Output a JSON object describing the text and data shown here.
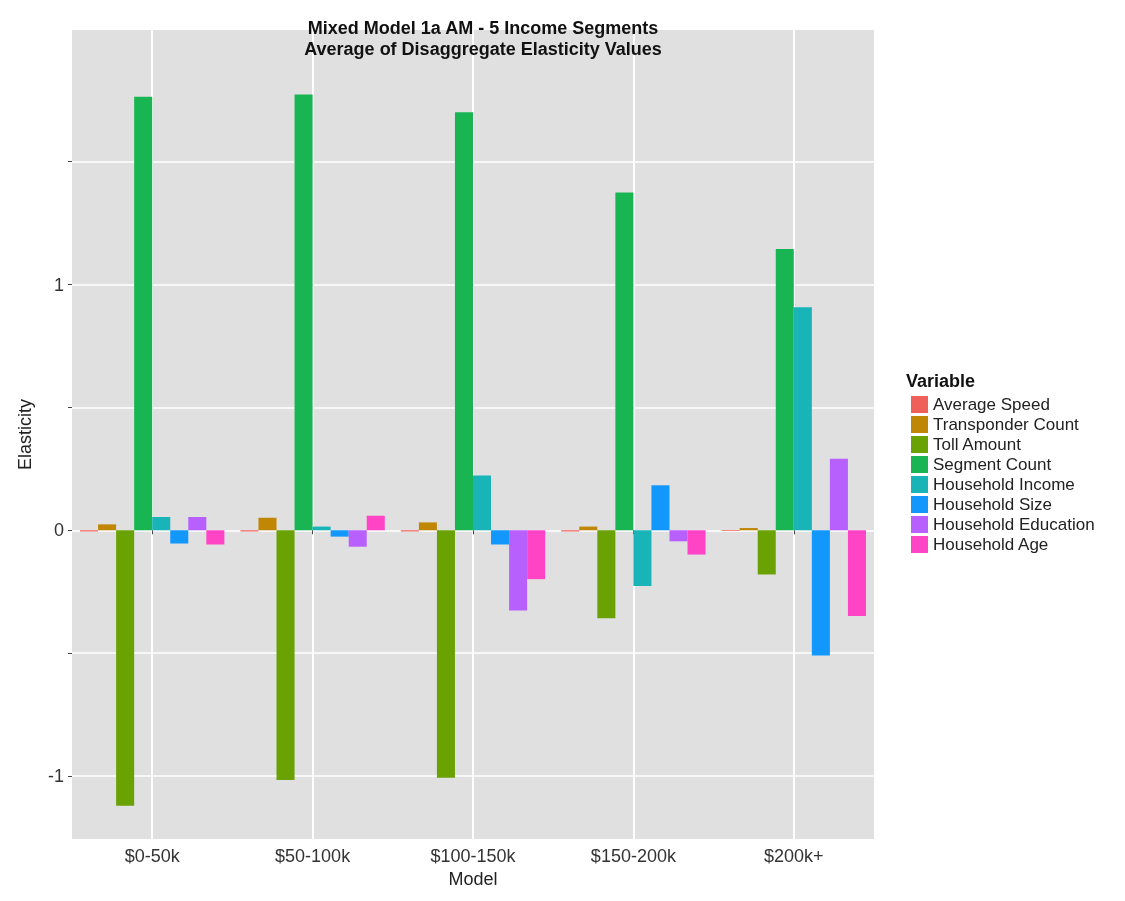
{
  "chart_data": {
    "type": "bar",
    "title": "Mixed Model 1a AM - 5 Income Segments\nAverage of Disaggregate Elasticity Values",
    "xlabel": "Model",
    "ylabel": "Elasticity",
    "legend_title": "Variable",
    "legend": "right",
    "grid": true,
    "categories": [
      "$0-50k",
      "$50-100k",
      "$100-150k",
      "$150-200k",
      "$200k+"
    ],
    "ylim": [
      -1.257,
      2.036
    ],
    "yticks": [
      -1,
      {
        "value": -0.5,
        "label": null
      },
      0,
      {
        "value": 0.5,
        "label": null
      },
      1,
      {
        "value": 1.5,
        "label": null
      }
    ],
    "series": [
      {
        "name": "Average Speed",
        "color": "#f0605a",
        "values": [
          -0.005,
          -0.005,
          -0.005,
          -0.005,
          -0.003
        ]
      },
      {
        "name": "Transponder Count",
        "color": "#c08605",
        "values": [
          0.024,
          0.051,
          0.032,
          0.015,
          0.009
        ]
      },
      {
        "name": "Toll Amount",
        "color": "#6aa204",
        "values": [
          -1.121,
          -1.016,
          -1.007,
          -0.358,
          -0.18
        ]
      },
      {
        "name": "Segment Count",
        "color": "#19b553",
        "values": [
          1.764,
          1.773,
          1.701,
          1.375,
          1.145
        ]
      },
      {
        "name": "Household Income",
        "color": "#18b4b8",
        "values": [
          0.054,
          0.015,
          0.223,
          -0.227,
          0.908
        ]
      },
      {
        "name": "Household Size",
        "color": "#1297fd",
        "values": [
          -0.054,
          -0.026,
          -0.058,
          0.183,
          -0.51
        ]
      },
      {
        "name": "Household Education",
        "color": "#b760fe",
        "values": [
          0.054,
          -0.067,
          -0.327,
          -0.045,
          0.291
        ]
      },
      {
        "name": "Household Age",
        "color": "#ff44c6",
        "values": [
          -0.058,
          0.059,
          -0.199,
          -0.099,
          -0.349
        ]
      }
    ]
  }
}
